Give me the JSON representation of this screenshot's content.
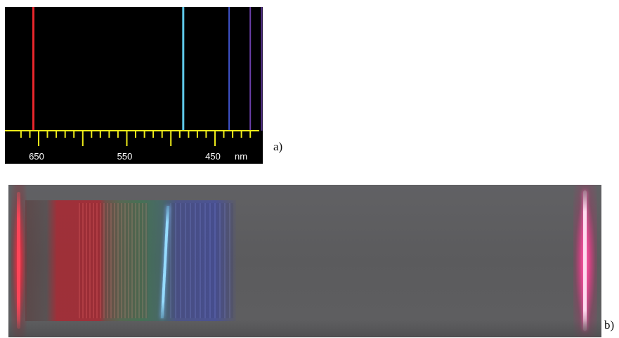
{
  "panel_a": {
    "caption": "a)",
    "unit": "nm",
    "tick_labels": [
      {
        "value": 650,
        "text": "650"
      },
      {
        "value": 550,
        "text": "550"
      },
      {
        "value": 450,
        "text": "450"
      }
    ],
    "spectral_lines": [
      {
        "wavelength": 656,
        "color": "#e8262b"
      },
      {
        "wavelength": 486,
        "color": "#5fc8e8"
      },
      {
        "wavelength": 434,
        "color": "#3f53c8"
      },
      {
        "wavelength": 410,
        "color": "#6a3fa8"
      },
      {
        "wavelength": 397,
        "color": "#5a3494"
      },
      {
        "wavelength": 389,
        "color": "#4f2c86"
      }
    ],
    "colors": {
      "background": "#000000",
      "axis": "#ecea1a",
      "label": "#ffffff"
    }
  },
  "panel_b": {
    "caption": "b)"
  }
}
